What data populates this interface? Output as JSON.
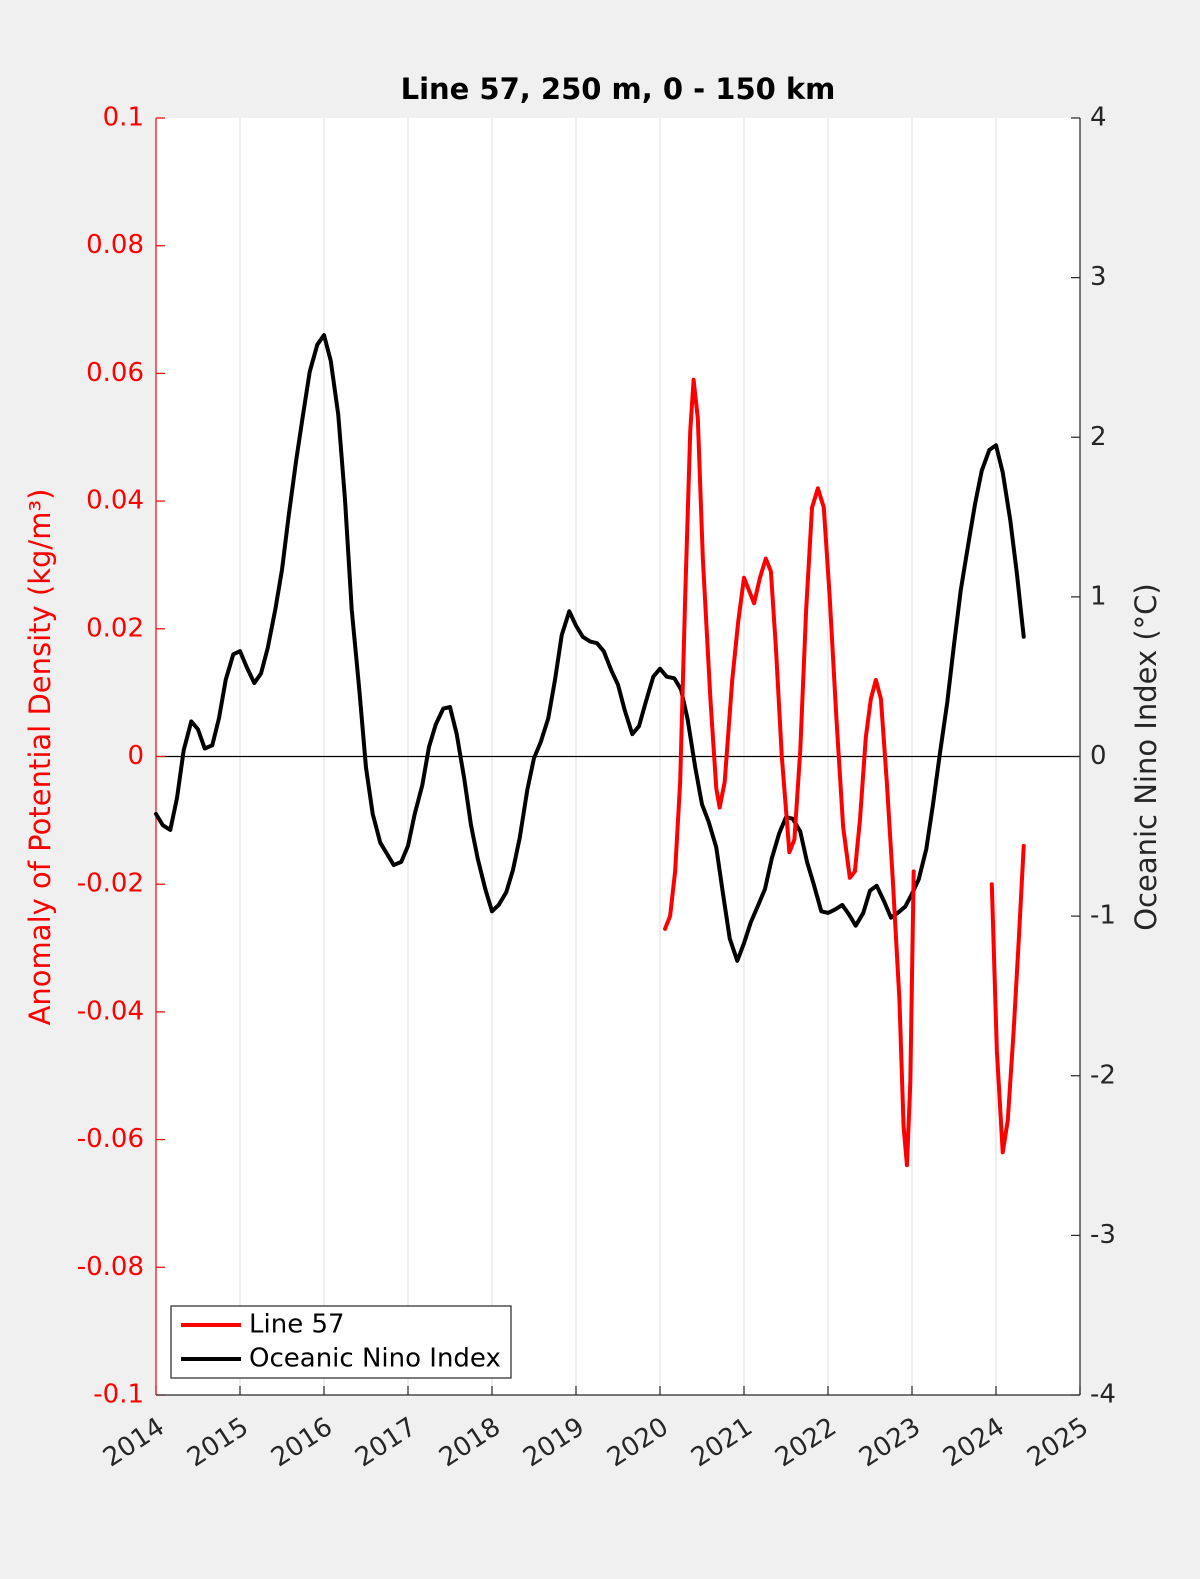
{
  "chart_data": {
    "type": "line",
    "title": "Line 57, 250 m, 0 - 150 km",
    "ylabel": "Anomaly of Potential Density (kg/m³)",
    "y2label": "Oceanic Nino Index (°C)",
    "xlim": [
      2014,
      2025
    ],
    "xticks": [
      2014,
      2015,
      2016,
      2017,
      2018,
      2019,
      2020,
      2021,
      2022,
      2023,
      2024,
      2025
    ],
    "ylim": [
      -0.1,
      0.1
    ],
    "yticks": [
      -0.1,
      -0.08,
      -0.06,
      -0.04,
      -0.02,
      0,
      0.02,
      0.04,
      0.06,
      0.08,
      0.1
    ],
    "y2lim": [
      -4,
      4
    ],
    "y2ticks": [
      -4,
      -3,
      -2,
      -1,
      0,
      1,
      2,
      3,
      4
    ],
    "grid": "x",
    "legend": "lower left",
    "series": [
      {
        "name": "Line 57",
        "color": "#ff0000",
        "axis": "y",
        "x": [
          2020.06,
          2020.12,
          2020.18,
          2020.24,
          2020.3,
          2020.36,
          2020.4,
          2020.45,
          2020.51,
          2020.6,
          2020.67,
          2020.71,
          2020.77,
          2020.86,
          2020.93,
          2021.0,
          2021.06,
          2021.12,
          2021.19,
          2021.26,
          2021.32,
          2021.38,
          2021.45,
          2021.54,
          2021.6,
          2021.67,
          2021.74,
          2021.81,
          2021.88,
          2021.95,
          2022.02,
          2022.1,
          2022.18,
          2022.26,
          2022.32,
          2022.38,
          2022.45,
          2022.51,
          2022.57,
          2022.63,
          2022.7,
          2022.77,
          2022.85,
          2022.9,
          2022.94,
          2022.98,
          2023.02,
          2023.5,
          2023.95,
          2024.01,
          2024.08,
          2024.14,
          2024.21,
          2024.27,
          2024.33
        ],
        "values": [
          -0.027,
          -0.025,
          -0.018,
          -0.004,
          0.025,
          0.051,
          0.059,
          0.053,
          0.031,
          0.009,
          -0.005,
          -0.008,
          -0.004,
          0.012,
          0.021,
          0.028,
          0.026,
          0.024,
          0.028,
          0.031,
          0.029,
          0.017,
          0.0,
          -0.015,
          -0.013,
          0.001,
          0.023,
          0.039,
          0.042,
          0.039,
          0.025,
          0.006,
          -0.011,
          -0.019,
          -0.018,
          -0.01,
          0.003,
          0.009,
          0.012,
          0.009,
          -0.004,
          -0.019,
          -0.038,
          -0.058,
          -0.064,
          -0.051,
          -0.018,
          null,
          -0.02,
          -0.046,
          -0.062,
          -0.057,
          -0.043,
          -0.029,
          -0.014
        ]
      },
      {
        "name": "Oceanic Nino Index",
        "color": "#000000",
        "axis": "y2",
        "x": [
          2014,
          2014.08,
          2014.17,
          2014.25,
          2014.33,
          2014.42,
          2014.5,
          2014.58,
          2014.67,
          2014.75,
          2014.83,
          2014.92,
          2015,
          2015.08,
          2015.17,
          2015.25,
          2015.33,
          2015.42,
          2015.5,
          2015.58,
          2015.67,
          2015.75,
          2015.83,
          2015.92,
          2016,
          2016.08,
          2016.17,
          2016.25,
          2016.33,
          2016.42,
          2016.5,
          2016.58,
          2016.67,
          2016.75,
          2016.83,
          2016.92,
          2017,
          2017.08,
          2017.17,
          2017.25,
          2017.33,
          2017.42,
          2017.5,
          2017.58,
          2017.67,
          2017.75,
          2017.83,
          2017.92,
          2018,
          2018.08,
          2018.17,
          2018.25,
          2018.33,
          2018.42,
          2018.5,
          2018.58,
          2018.67,
          2018.75,
          2018.83,
          2018.92,
          2019,
          2019.08,
          2019.17,
          2019.25,
          2019.33,
          2019.42,
          2019.5,
          2019.58,
          2019.67,
          2019.75,
          2019.83,
          2019.92,
          2020,
          2020.08,
          2020.17,
          2020.25,
          2020.33,
          2020.42,
          2020.5,
          2020.58,
          2020.67,
          2020.75,
          2020.83,
          2020.92,
          2021,
          2021.08,
          2021.17,
          2021.25,
          2021.33,
          2021.42,
          2021.5,
          2021.58,
          2021.67,
          2021.75,
          2021.83,
          2021.92,
          2022,
          2022.08,
          2022.17,
          2022.25,
          2022.33,
          2022.42,
          2022.5,
          2022.58,
          2022.67,
          2022.75,
          2022.83,
          2022.92,
          2023,
          2023.08,
          2023.17,
          2023.25,
          2023.33,
          2023.42,
          2023.5,
          2023.58,
          2023.67,
          2023.75,
          2023.83,
          2023.92,
          2024,
          2024.08,
          2024.17,
          2024.25,
          2024.33
        ],
        "values": [
          -0.36,
          -0.43,
          -0.46,
          -0.26,
          0.04,
          0.22,
          0.17,
          0.05,
          0.07,
          0.24,
          0.48,
          0.64,
          0.66,
          0.56,
          0.46,
          0.52,
          0.68,
          0.92,
          1.17,
          1.51,
          1.86,
          2.14,
          2.41,
          2.58,
          2.64,
          2.48,
          2.14,
          1.61,
          0.92,
          0.42,
          -0.07,
          -0.36,
          -0.54,
          -0.61,
          -0.68,
          -0.66,
          -0.56,
          -0.36,
          -0.18,
          0.06,
          0.2,
          0.3,
          0.31,
          0.14,
          -0.14,
          -0.43,
          -0.64,
          -0.83,
          -0.97,
          -0.93,
          -0.85,
          -0.71,
          -0.51,
          -0.21,
          -0.01,
          0.09,
          0.24,
          0.48,
          0.76,
          0.91,
          0.82,
          0.75,
          0.72,
          0.71,
          0.66,
          0.54,
          0.45,
          0.29,
          0.14,
          0.19,
          0.34,
          0.5,
          0.55,
          0.5,
          0.49,
          0.42,
          0.23,
          -0.07,
          -0.3,
          -0.41,
          -0.57,
          -0.86,
          -1.14,
          -1.28,
          -1.17,
          -1.04,
          -0.93,
          -0.83,
          -0.64,
          -0.48,
          -0.38,
          -0.39,
          -0.47,
          -0.66,
          -0.8,
          -0.97,
          -0.98,
          -0.96,
          -0.93,
          -0.99,
          -1.06,
          -0.98,
          -0.84,
          -0.81,
          -0.91,
          -1.01,
          -0.98,
          -0.94,
          -0.86,
          -0.77,
          -0.58,
          -0.3,
          0.01,
          0.34,
          0.7,
          1.04,
          1.33,
          1.58,
          1.79,
          1.92,
          1.95,
          1.78,
          1.48,
          1.14,
          0.75
        ]
      }
    ]
  }
}
